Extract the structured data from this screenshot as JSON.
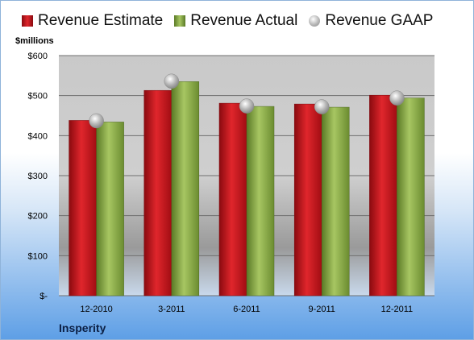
{
  "company": "Insperity",
  "unit_label": "$millions",
  "colors": {
    "estimate": "#d0141c",
    "actual": "#8aab4a",
    "gaap": "#c8c8c8"
  },
  "chart_data": {
    "type": "bar",
    "categories": [
      "12-2010",
      "3-2011",
      "6-2011",
      "9-2011",
      "12-2011"
    ],
    "series": [
      {
        "name": "Revenue Estimate",
        "values": [
          438,
          513,
          481,
          479,
          501
        ]
      },
      {
        "name": "Revenue Actual",
        "values": [
          434,
          535,
          473,
          471,
          494
        ]
      },
      {
        "name": "Revenue GAAP",
        "marker": "circle",
        "values": [
          437,
          536,
          474,
          472,
          494
        ]
      }
    ],
    "yticks": [
      "$-",
      "$100",
      "$200",
      "$300",
      "$400",
      "$500",
      "$600"
    ],
    "ylim": [
      0,
      600
    ],
    "grid": true,
    "legend": "top"
  }
}
